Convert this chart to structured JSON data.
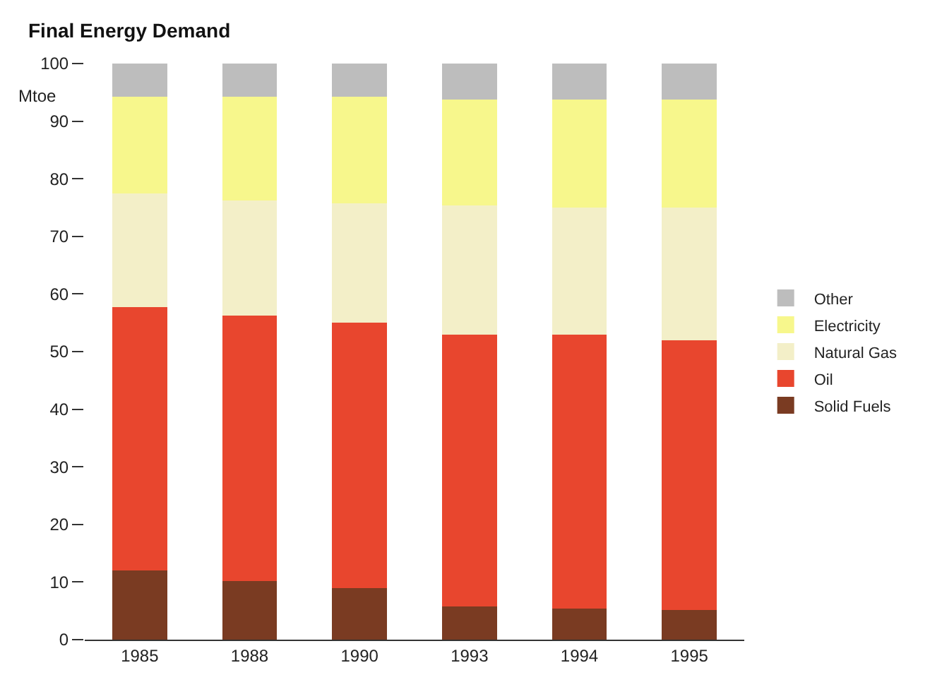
{
  "chart_data": {
    "type": "bar",
    "title": "Final Energy Demand",
    "ylabel": "Mtoe",
    "stacked": true,
    "categories": [
      "1985",
      "1988",
      "1990",
      "1993",
      "1994",
      "1995"
    ],
    "series": [
      {
        "name": "Solid Fuels",
        "color": "#7a3b22",
        "values": [
          12,
          10.2,
          9,
          5.8,
          5.4,
          5.1
        ]
      },
      {
        "name": "Oil",
        "color": "#e8462e",
        "values": [
          45.7,
          46,
          46,
          47.2,
          47.6,
          46.9
        ]
      },
      {
        "name": "Natural Gas",
        "color": "#f3efc8",
        "values": [
          19.7,
          20,
          20.7,
          22.4,
          22,
          23
        ]
      },
      {
        "name": "Electricity",
        "color": "#f7f78c",
        "values": [
          16.8,
          18,
          18.5,
          18.3,
          18.7,
          18.7
        ]
      },
      {
        "name": "Other",
        "color": "#bdbdbd",
        "values": [
          5.8,
          5.8,
          5.8,
          6.3,
          6.3,
          6.3
        ]
      }
    ],
    "ylim": [
      0,
      100
    ],
    "yticks": [
      0,
      10,
      20,
      30,
      40,
      50,
      60,
      70,
      80,
      90,
      100
    ],
    "legend": "right",
    "grid": false
  }
}
